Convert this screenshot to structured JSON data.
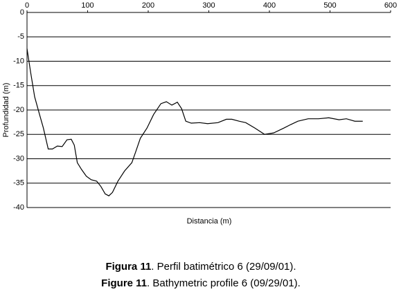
{
  "chart_data": {
    "type": "line",
    "x_label": "Distancia (m)",
    "y_label": "Profundidad (m)",
    "xlim": [
      0,
      600
    ],
    "xticks": [
      0,
      100,
      200,
      300,
      400,
      500,
      600
    ],
    "ylim": [
      -40,
      0
    ],
    "yticks": [
      0,
      -5,
      -10,
      -15,
      -20,
      -25,
      -30,
      -35,
      -40
    ],
    "grid": true,
    "x": [
      0,
      6,
      12.6,
      20.6,
      27,
      35,
      42,
      50,
      58,
      66,
      73,
      78,
      83,
      90,
      98,
      106,
      115,
      122,
      129,
      135,
      141,
      150,
      161,
      173,
      179,
      187,
      198,
      209,
      221,
      230,
      239,
      248,
      255,
      262,
      271,
      285,
      298,
      315,
      329,
      338,
      350,
      361,
      376,
      392,
      407,
      424,
      435,
      447,
      464,
      481,
      498,
      515,
      527,
      541,
      554
    ],
    "series": [
      {
        "color": "#000000",
        "values": [
          -7.4,
          -12.3,
          -17.3,
          -20.9,
          -23.7,
          -28,
          -28,
          -27.4,
          -27.5,
          -26.1,
          -26,
          -27.2,
          -30.8,
          -32.2,
          -33.6,
          -34.3,
          -34.6,
          -35.7,
          -37.2,
          -37.6,
          -36.9,
          -34.6,
          -32.5,
          -30.8,
          -28.7,
          -25.8,
          -23.7,
          -20.9,
          -18.7,
          -18.3,
          -19,
          -18.4,
          -19.7,
          -22.3,
          -22.7,
          -22.6,
          -22.8,
          -22.6,
          -21.9,
          -21.9,
          -22.3,
          -22.6,
          -23.7,
          -25,
          -24.7,
          -23.7,
          -23,
          -22.3,
          -21.8,
          -21.8,
          -21.6,
          -22,
          -21.8,
          -22.3,
          -22.3
        ]
      }
    ],
    "captions": [
      {
        "label": "Figura 11",
        "text": ". Perfil batimétrico 6 (29/09/01)."
      },
      {
        "label": "Figure 11",
        "text": ". Bathymetric profile 6 (09/29/01)."
      }
    ]
  }
}
